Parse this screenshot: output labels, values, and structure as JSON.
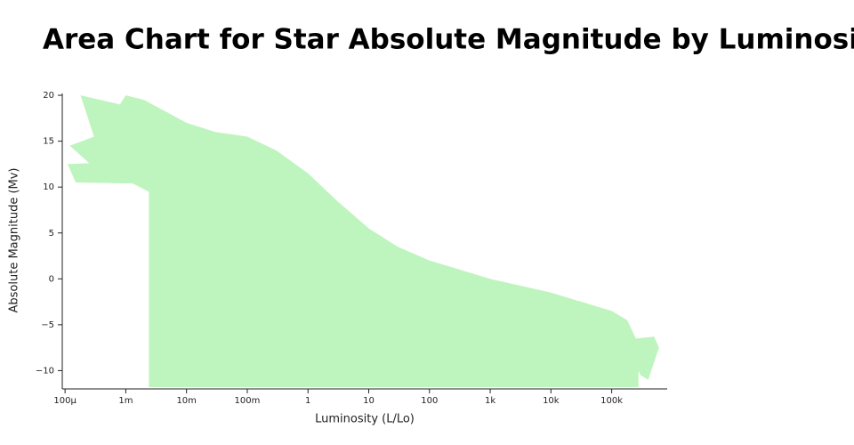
{
  "chart_data": {
    "type": "area",
    "title": "Area Chart for Star Absolute Magnitude by Luminosity",
    "x_label": "Luminosity (L/Lo)",
    "y_label": "Absolute Magnitude (Mv)",
    "x": [
      0.0024,
      0.0013,
      0.00015,
      0.00011,
      0.00025,
      0.00012,
      0.0003,
      0.00018,
      0.0008,
      0.001,
      0.002,
      0.01,
      0.03,
      0.1,
      0.3,
      1,
      3,
      10,
      30,
      100,
      1000,
      10000,
      100000,
      180000,
      250000,
      500000,
      600000,
      400000,
      300000,
      276000
    ],
    "values": [
      9.5,
      10.4,
      10.5,
      12.5,
      12.6,
      14.5,
      15.5,
      20,
      19,
      20,
      19.5,
      17,
      16,
      15.5,
      14,
      11.5,
      8.5,
      5.5,
      3.5,
      2,
      0,
      -1.5,
      -3.5,
      -4.5,
      -6.5,
      -6.3,
      -7.5,
      -11,
      -10.5,
      -10
    ],
    "color": "#bef4bd",
    "x_log": true,
    "xlim": [
      9e-05,
      820000
    ],
    "xticks": [
      {
        "value": 0.0001,
        "label": "100µ"
      },
      {
        "value": 0.001,
        "label": "1m"
      },
      {
        "value": 0.01,
        "label": "10m"
      },
      {
        "value": 0.1,
        "label": "100m"
      },
      1,
      10,
      100,
      {
        "value": 1000,
        "label": "1k"
      },
      {
        "value": 10000,
        "label": "10k"
      },
      {
        "value": 100000,
        "label": "100k"
      }
    ],
    "ylim": [
      -11.8,
      20.2
    ],
    "yticks": [
      20,
      15,
      10,
      5,
      0,
      {
        "value": -5,
        "label": "−5"
      },
      {
        "value": -10,
        "label": "−10"
      }
    ]
  }
}
